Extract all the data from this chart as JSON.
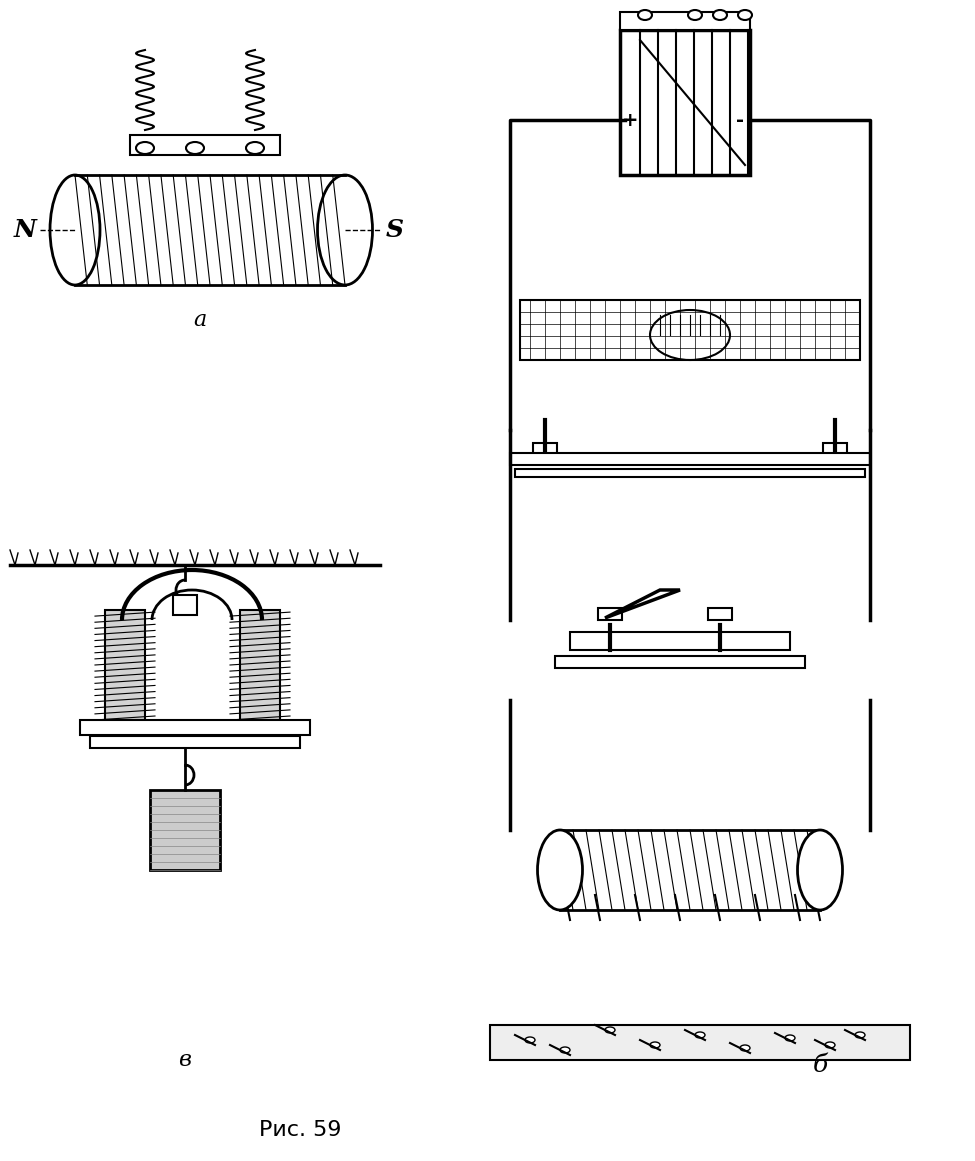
{
  "title": "",
  "background_color": "#ffffff",
  "label_a": "a",
  "label_b": "б",
  "label_v": "в",
  "caption": "Рис. 59",
  "label_N": "N",
  "label_S": "S",
  "figsize": [
    9.75,
    11.61
  ],
  "dpi": 100
}
